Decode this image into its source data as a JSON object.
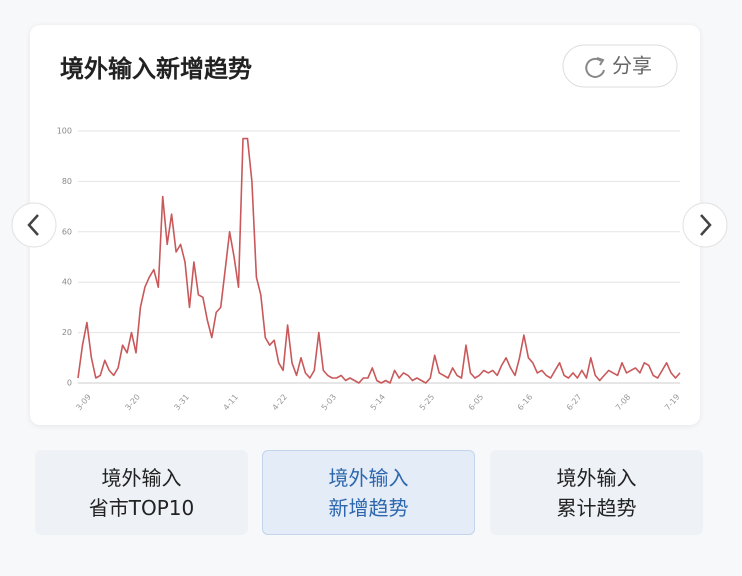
{
  "header": {
    "title": "境外输入新增趋势",
    "share": "分享"
  },
  "chart_data": {
    "type": "line",
    "categories": [
      null,
      null,
      null,
      "3-09",
      null,
      null,
      null,
      null,
      null,
      null,
      null,
      null,
      null,
      null,
      "3-20",
      null,
      null,
      null,
      null,
      null,
      null,
      null,
      null,
      null,
      null,
      "3-31",
      null,
      null,
      null,
      null,
      null,
      null,
      null,
      null,
      null,
      null,
      "4-11",
      null,
      null,
      null,
      null,
      null,
      null,
      null,
      null,
      null,
      null,
      "4-22",
      null,
      null,
      null,
      null,
      null,
      null,
      null,
      null,
      null,
      null,
      "5-03",
      null,
      null,
      null,
      null,
      null,
      null,
      null,
      null,
      null,
      null,
      "5-14",
      null,
      null,
      null,
      null,
      null,
      null,
      null,
      null,
      null,
      null,
      "5-25",
      null,
      null,
      null,
      null,
      null,
      null,
      null,
      null,
      null,
      null,
      "6-05",
      null,
      null,
      null,
      null,
      null,
      null,
      null,
      null,
      null,
      null,
      "6-16",
      null,
      null,
      null,
      null,
      null,
      null,
      null,
      null,
      null,
      null,
      "6-27",
      null,
      null,
      null,
      null,
      null,
      null,
      null,
      null,
      null,
      null,
      "7-08",
      null,
      null,
      null,
      null,
      null,
      null,
      null,
      null,
      null,
      null,
      "7-19"
    ],
    "values": [
      2,
      15,
      24,
      10,
      2,
      3,
      9,
      5,
      3,
      6,
      15,
      12,
      20,
      12,
      30,
      38,
      42,
      45,
      38,
      74,
      55,
      67,
      52,
      55,
      48,
      30,
      48,
      35,
      34,
      25,
      18,
      28,
      30,
      45,
      60,
      50,
      38,
      97,
      97,
      80,
      42,
      35,
      18,
      15,
      17,
      8,
      5,
      23,
      8,
      3,
      10,
      4,
      2,
      5,
      20,
      5,
      3,
      2,
      2,
      3,
      1,
      2,
      1,
      0,
      2,
      2,
      6,
      1,
      0,
      1,
      0,
      5,
      2,
      4,
      3,
      1,
      2,
      1,
      0,
      2,
      11,
      4,
      3,
      2,
      6,
      3,
      2,
      15,
      4,
      2,
      3,
      5,
      4,
      5,
      3,
      7,
      10,
      6,
      3,
      10,
      19,
      10,
      8,
      4,
      5,
      3,
      2,
      5,
      8,
      3,
      2,
      4,
      2,
      5,
      2,
      10,
      3,
      1,
      3,
      5,
      4,
      3,
      8,
      4,
      5,
      6,
      4,
      8,
      7,
      3,
      2,
      5,
      8,
      4,
      2,
      4
    ],
    "color": "#c9585a",
    "ylim": [
      0,
      100
    ],
    "yticks": [
      0,
      20,
      40,
      60,
      80,
      100
    ],
    "grid": true
  },
  "tabs": [
    {
      "lines": [
        "境外输入",
        "省市TOP10"
      ]
    },
    {
      "lines": [
        "境外输入",
        "新增趋势"
      ]
    },
    {
      "lines": [
        "境外输入",
        "累计趋势"
      ]
    }
  ]
}
